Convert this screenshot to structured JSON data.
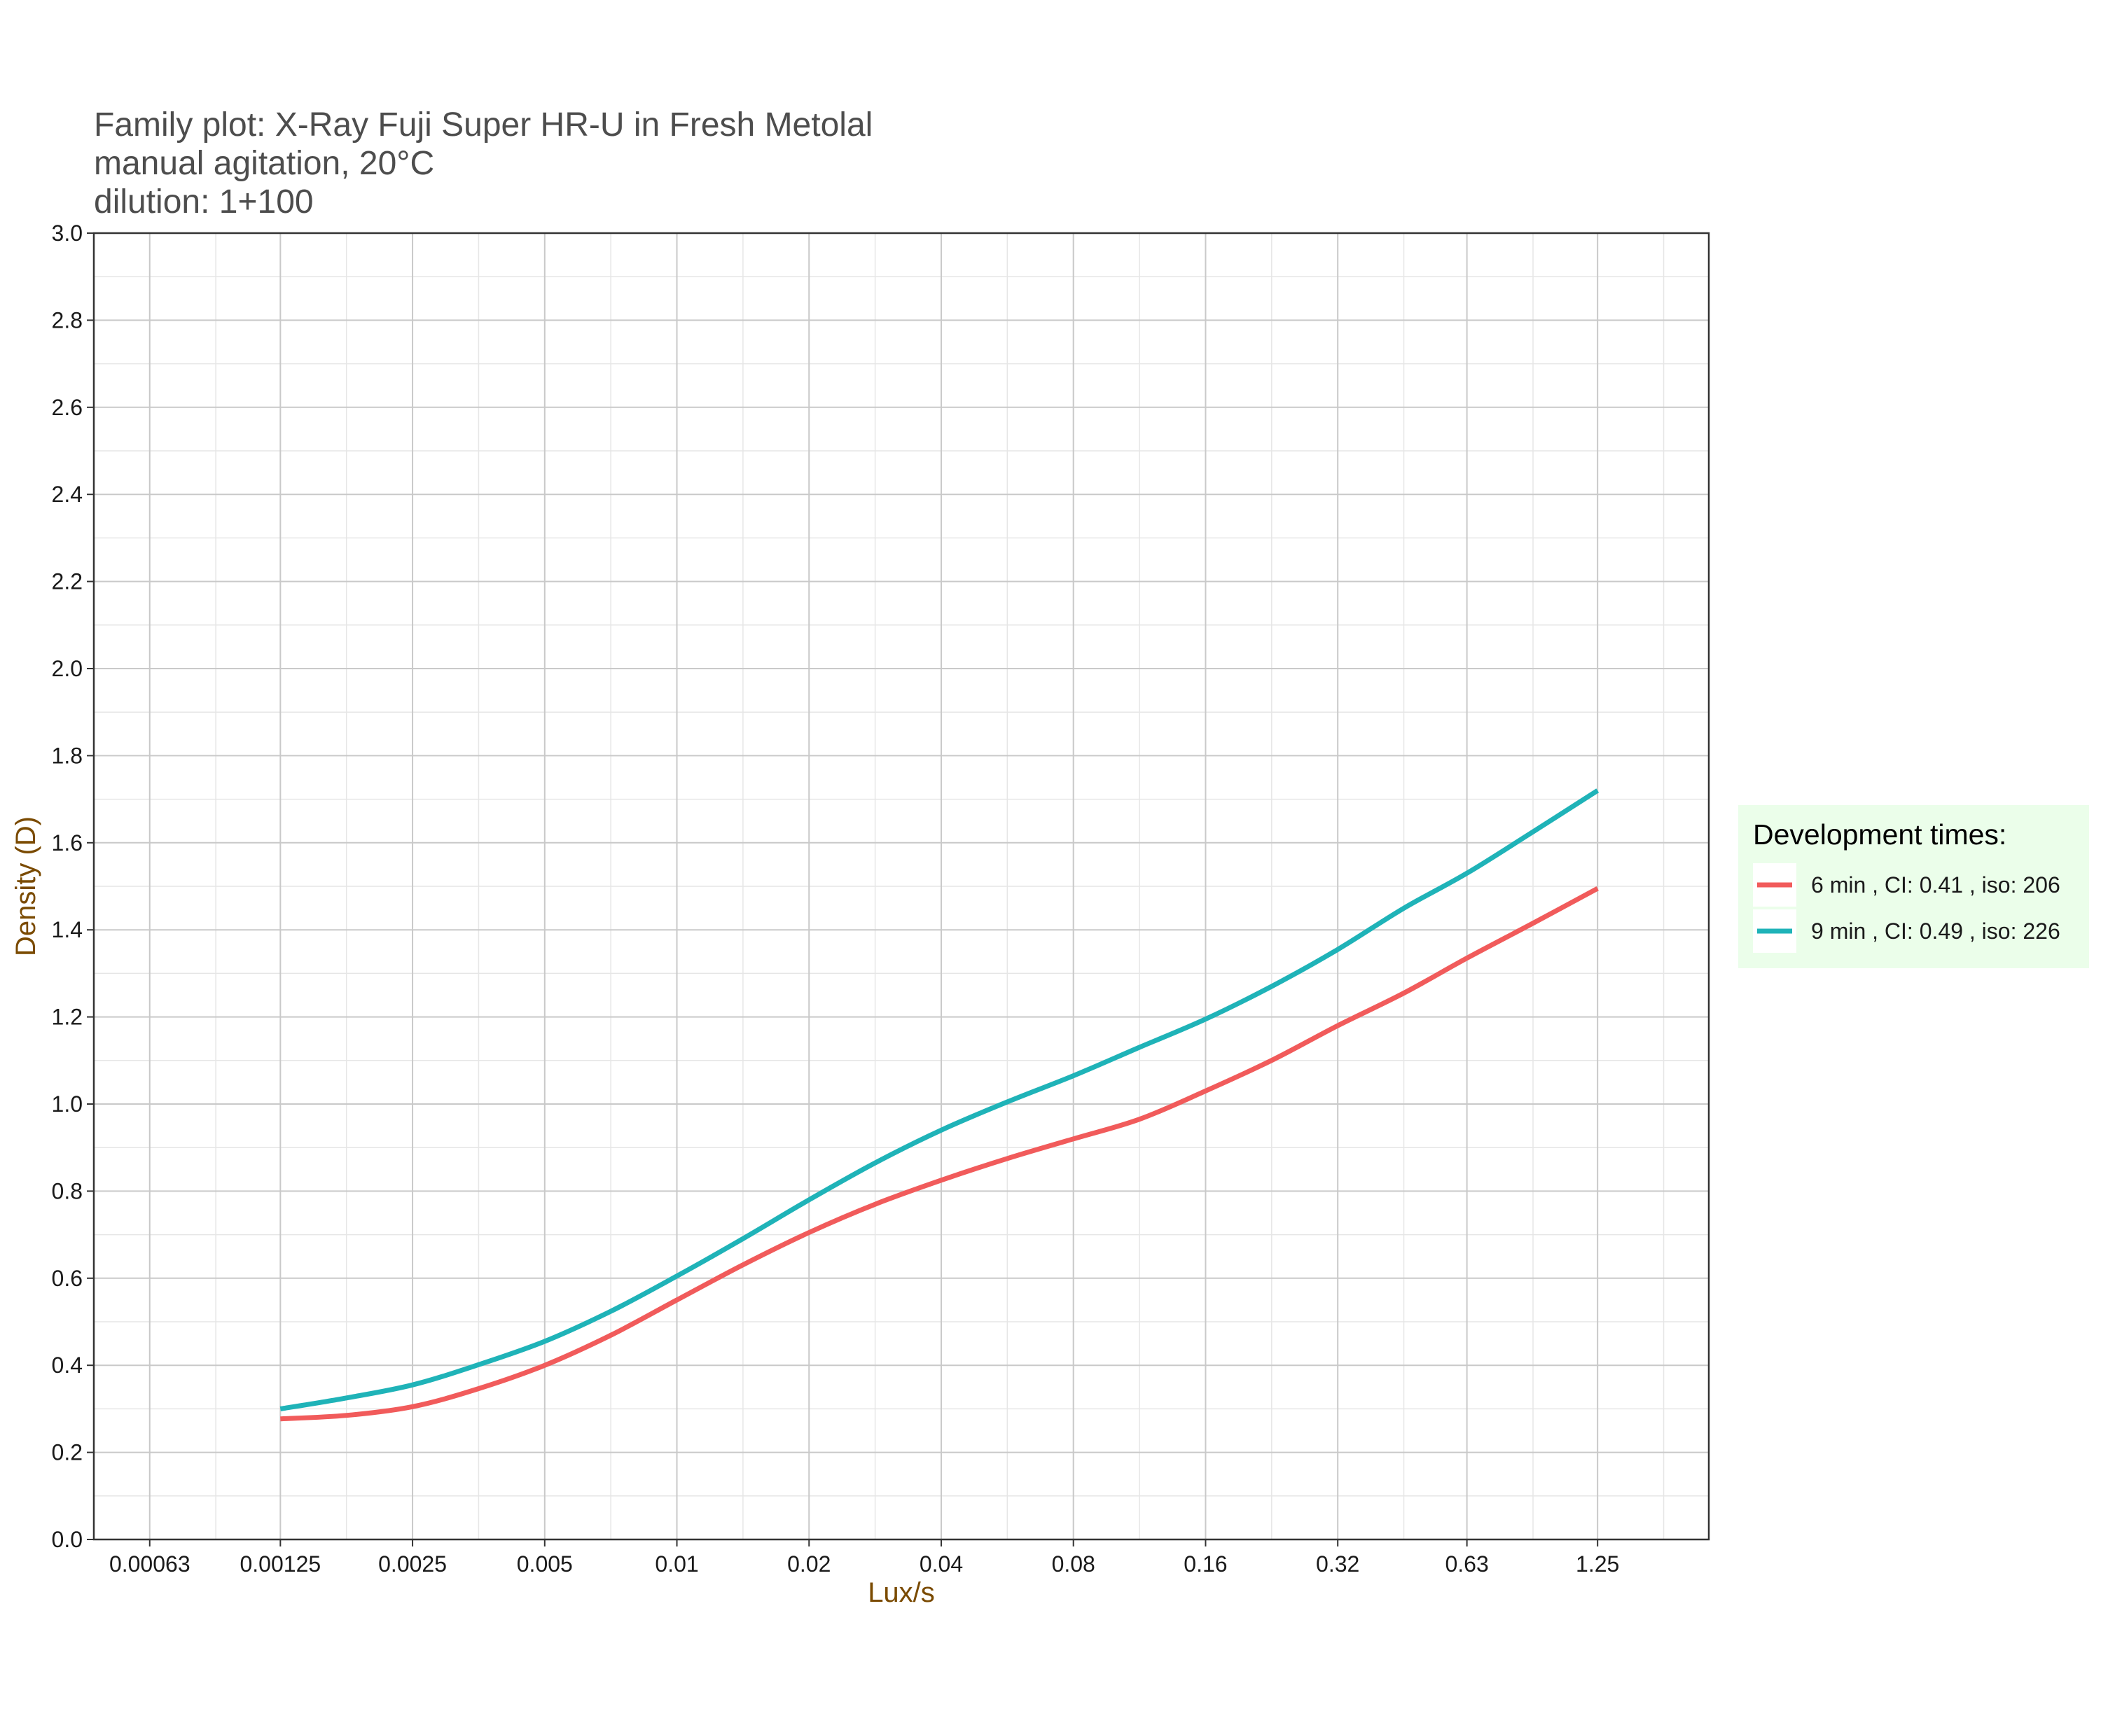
{
  "chart_data": {
    "type": "line",
    "title": [
      "Family plot: X-Ray Fuji Super HR-U in Fresh Metolal",
      "manual agitation, 20°C",
      "dilution: 1+100"
    ],
    "xlabel": "Lux/s",
    "ylabel": "Density (D)",
    "x_scale": "log2",
    "xlim": [
      0.00047,
      2.24
    ],
    "ylim": [
      0,
      3.0
    ],
    "x_ticks": [
      0.00063,
      0.00125,
      0.0025,
      0.005,
      0.01,
      0.02,
      0.04,
      0.08,
      0.16,
      0.32,
      0.63,
      1.25
    ],
    "x_tick_labels": [
      "0.00063",
      "0.00125",
      "0.0025",
      "0.005",
      "0.01",
      "0.02",
      "0.04",
      "0.08",
      "0.16",
      "0.32",
      "0.63",
      "1.25"
    ],
    "y_ticks": [
      0.0,
      0.2,
      0.4,
      0.6,
      0.8,
      1.0,
      1.2,
      1.4,
      1.6,
      1.8,
      2.0,
      2.2,
      2.4,
      2.6,
      2.8,
      3.0
    ],
    "y_tick_labels": [
      "0.0",
      "0.2",
      "0.4",
      "0.6",
      "0.8",
      "1.0",
      "1.2",
      "1.4",
      "1.6",
      "1.8",
      "2.0",
      "2.2",
      "2.4",
      "2.6",
      "2.8",
      "3.0"
    ],
    "grid": true,
    "legend": {
      "title": "Development times:",
      "position": "right",
      "background": "#ebfeea"
    },
    "series": [
      {
        "name": "6 min , CI: 0.41 , iso: 206",
        "color": "#f15b5b",
        "x": [
          0.00125,
          0.00177,
          0.0025,
          0.0035,
          0.005,
          0.0071,
          0.01,
          0.0141,
          0.02,
          0.0283,
          0.04,
          0.0566,
          0.08,
          0.113,
          0.16,
          0.226,
          0.32,
          0.453,
          0.63,
          0.89,
          1.25
        ],
        "values": [
          0.277,
          0.285,
          0.305,
          0.345,
          0.4,
          0.47,
          0.55,
          0.63,
          0.705,
          0.77,
          0.825,
          0.875,
          0.92,
          0.965,
          1.03,
          1.1,
          1.18,
          1.255,
          1.335,
          1.415,
          1.495
        ]
      },
      {
        "name": "9 min , CI: 0.49 , iso: 226",
        "color": "#1fb3b8",
        "x": [
          0.00125,
          0.00177,
          0.0025,
          0.0035,
          0.005,
          0.0071,
          0.01,
          0.0141,
          0.02,
          0.0283,
          0.04,
          0.0566,
          0.08,
          0.113,
          0.16,
          0.226,
          0.32,
          0.453,
          0.63,
          0.89,
          1.25
        ],
        "values": [
          0.3,
          0.325,
          0.355,
          0.4,
          0.455,
          0.525,
          0.605,
          0.69,
          0.78,
          0.865,
          0.94,
          1.005,
          1.065,
          1.13,
          1.195,
          1.27,
          1.355,
          1.45,
          1.53,
          1.625,
          1.72
        ]
      }
    ]
  }
}
